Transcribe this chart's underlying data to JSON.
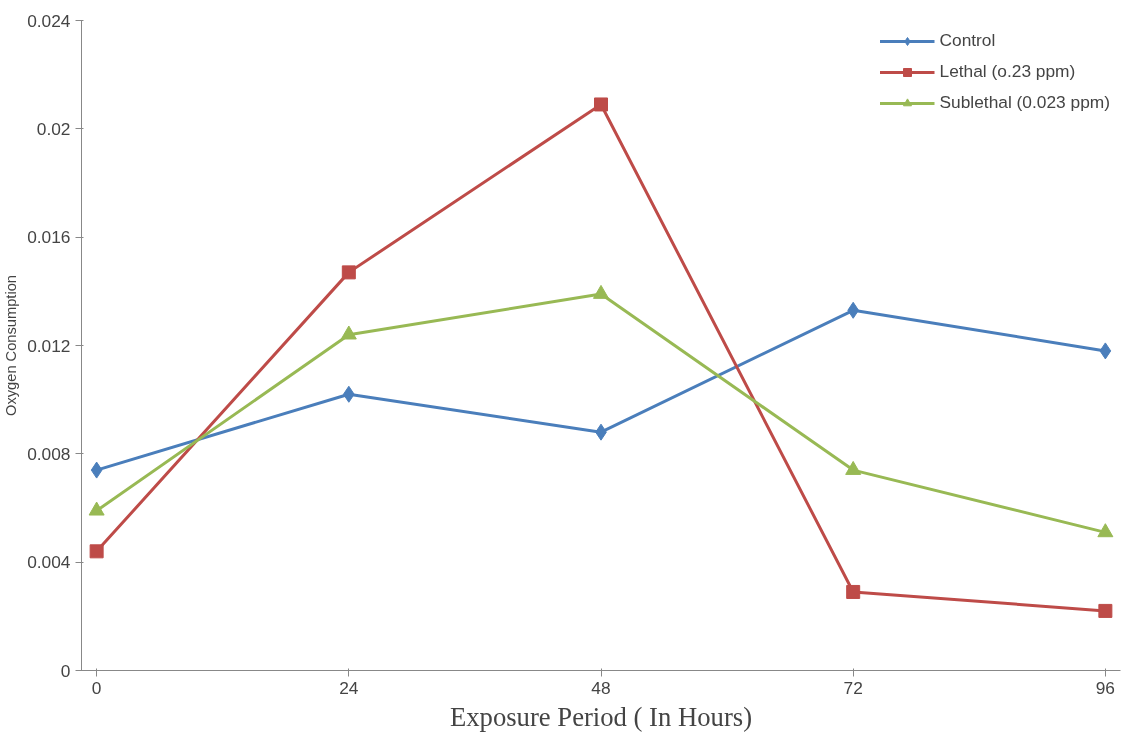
{
  "chart_data": {
    "type": "line",
    "xlabel": "Exposure Period ( In Hours)",
    "ylabel": "Oxygen Consumption",
    "categories": [
      "0",
      "24",
      "48",
      "72",
      "96"
    ],
    "ylim": [
      0,
      0.024
    ],
    "yticks": [
      0,
      0.004,
      0.008,
      0.012,
      0.016,
      0.02,
      0.024
    ],
    "grid": false,
    "legend": "top right",
    "line_style": "solid",
    "series": [
      {
        "name": "Control",
        "color": "#4a7ebb",
        "marker": "diamond",
        "values": [
          0.0074,
          0.0102,
          0.0088,
          0.0133,
          0.0118
        ]
      },
      {
        "name": "Lethal (o.23 ppm)",
        "color": "#be4b48",
        "marker": "square",
        "values": [
          0.0044,
          0.0147,
          0.0209,
          0.0029,
          0.0022
        ]
      },
      {
        "name": "Sublethal (0.023 ppm)",
        "color": "#98b954",
        "marker": "triangle",
        "values": [
          0.0059,
          0.0124,
          0.0139,
          0.0074,
          0.0051
        ]
      }
    ]
  }
}
